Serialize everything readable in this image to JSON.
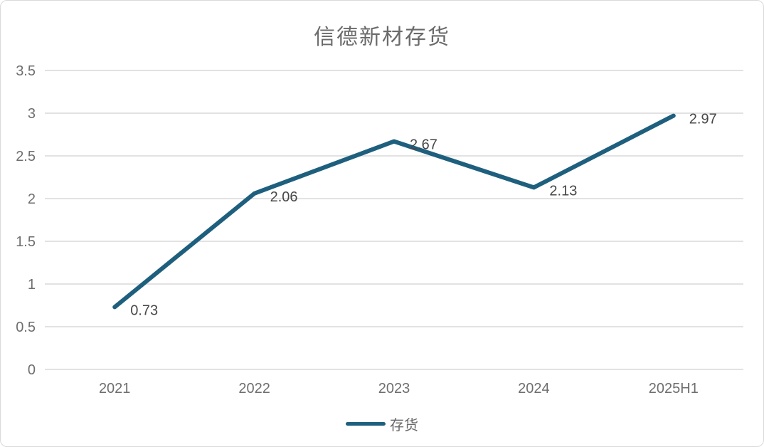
{
  "chart": {
    "colors": {
      "line": "#1e5f7e",
      "grid": "#d9d9d9",
      "title_text": "#6a6a6a",
      "axis_text": "#6e6e6e",
      "data_label_text": "#474747",
      "frame_border": "#d9d9d9",
      "background": "#ffffff"
    }
  },
  "chart_data": {
    "type": "line",
    "title": "信德新材存货",
    "categories": [
      "2021",
      "2022",
      "2023",
      "2024",
      "2025H1"
    ],
    "series": [
      {
        "name": "存货",
        "values": [
          0.73,
          2.06,
          2.67,
          2.13,
          2.97
        ]
      }
    ],
    "data_labels": [
      "0.73",
      "2.06",
      "2.67",
      "2.13",
      "2.97"
    ],
    "y_ticks": [
      "3.5",
      "3",
      "2.5",
      "2",
      "1.5",
      "1",
      "0.5",
      "0"
    ],
    "ylim": [
      0,
      3.5
    ],
    "y_step": 0.5,
    "xlabel": "",
    "ylabel": "",
    "grid": true,
    "legend_position": "bottom"
  }
}
